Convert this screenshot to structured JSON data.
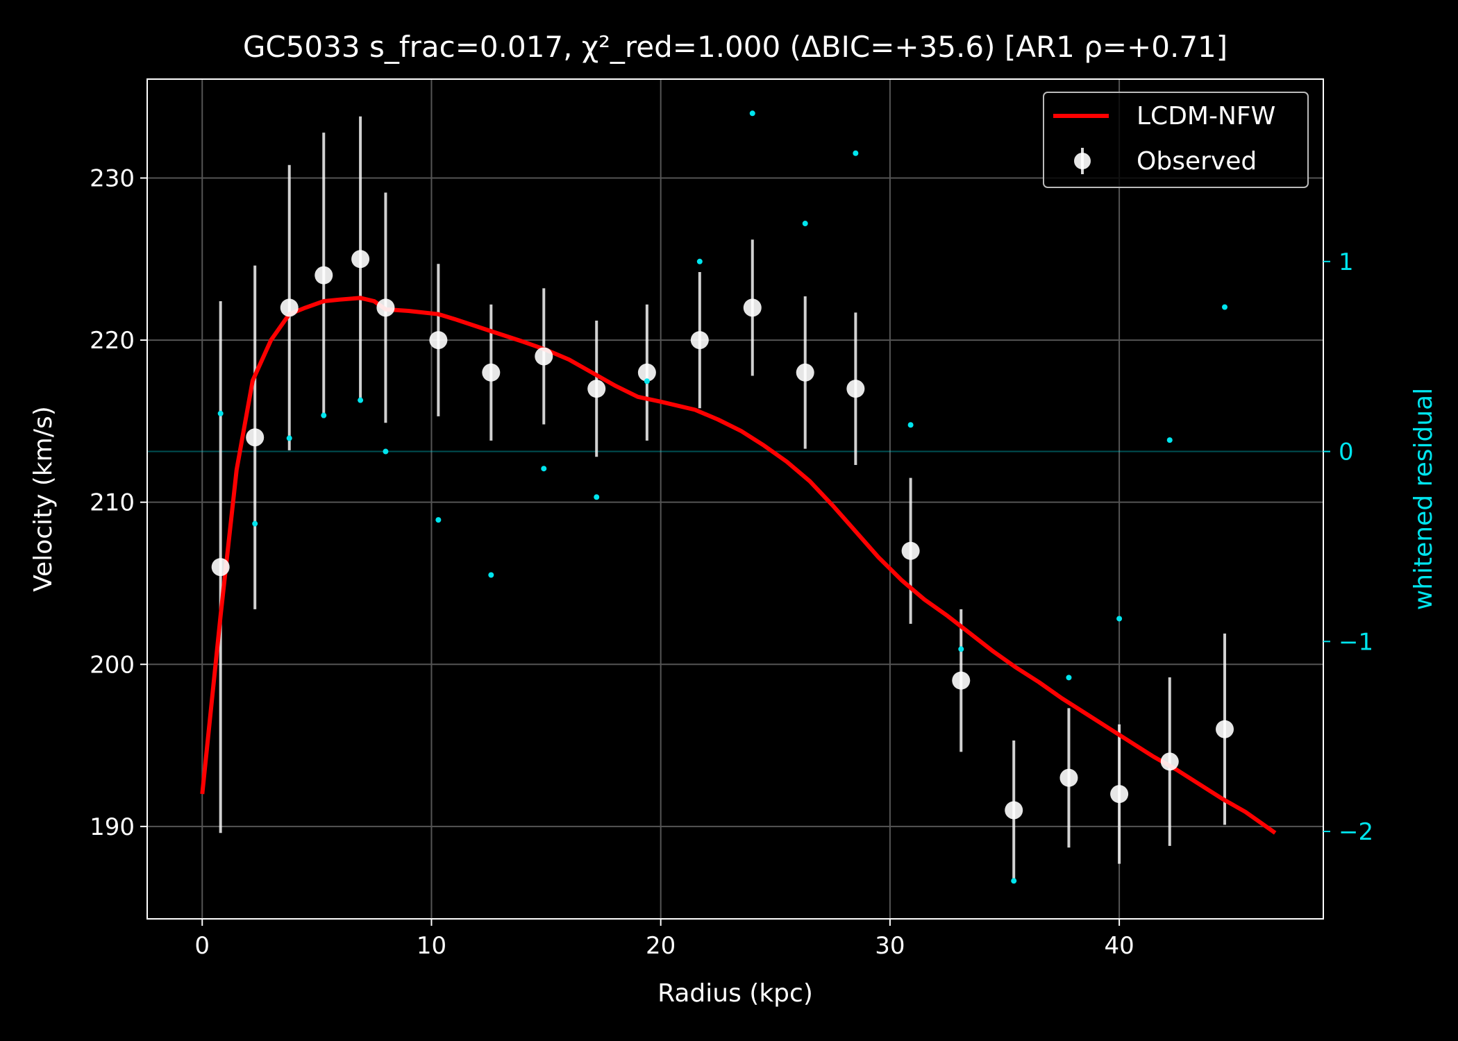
{
  "chart_data": {
    "type": "scatter",
    "title": "GC5033  s_frac=0.017, χ²_red=1.000  (ΔBIC=+35.6) [AR1 ρ=+0.71]",
    "xlabel": "Radius (kpc)",
    "ylabel": "Velocity (km/s)",
    "y2label": "whitened residual",
    "xlim": [
      -2.4,
      48.9
    ],
    "ylim": [
      184.3,
      236.1
    ],
    "y2lim": [
      -2.46,
      1.96
    ],
    "xticks": [
      0,
      10,
      20,
      30,
      40
    ],
    "yticks": [
      190,
      200,
      210,
      220,
      230
    ],
    "y2ticks": [
      -2,
      -1,
      0,
      1
    ],
    "y2ticklabels": [
      "−2",
      "−1",
      "0",
      "1"
    ],
    "grid": true,
    "legend_position": "top-right",
    "colors": {
      "background": "#000000",
      "model": "#ff0000",
      "observed": "#ffffff",
      "residual": "#00e5ee",
      "grid": "#555555"
    },
    "series": [
      {
        "name": "LCDM-NFW",
        "kind": "line",
        "x": [
          0,
          0.8,
          1.5,
          2.2,
          3.0,
          3.8,
          4.5,
          5.3,
          6.0,
          6.9,
          7.5,
          8.0,
          9.0,
          10.3,
          11.0,
          12.5,
          14.0,
          15.0,
          16.0,
          17.0,
          18.0,
          19.0,
          20.0,
          21.5,
          22.5,
          23.5,
          24.5,
          25.5,
          26.5,
          27.5,
          28.5,
          29.5,
          30.5,
          31.5,
          32.5,
          33.5,
          34.5,
          35.5,
          36.5,
          37.5,
          38.5,
          39.5,
          40.5,
          41.5,
          42.5,
          43.5,
          44.5,
          45.5,
          46.8
        ],
        "y": [
          192.0,
          203.0,
          212.0,
          217.5,
          220.0,
          221.6,
          222.0,
          222.4,
          222.5,
          222.6,
          222.4,
          221.9,
          221.8,
          221.6,
          221.3,
          220.6,
          219.9,
          219.4,
          218.8,
          218.0,
          217.2,
          216.5,
          216.2,
          215.7,
          215.1,
          214.4,
          213.5,
          212.5,
          211.3,
          209.8,
          208.2,
          206.6,
          205.2,
          204.0,
          203.0,
          201.9,
          200.8,
          199.8,
          198.9,
          197.9,
          197.0,
          196.1,
          195.2,
          194.3,
          193.5,
          192.6,
          191.7,
          190.9,
          189.6
        ]
      },
      {
        "name": "Observed",
        "kind": "errorbar",
        "x": [
          0.8,
          2.3,
          3.8,
          5.3,
          6.9,
          8.0,
          10.3,
          12.6,
          14.9,
          17.2,
          19.4,
          21.7,
          24.0,
          26.3,
          28.5,
          30.9,
          33.1,
          35.4,
          37.8,
          40.0,
          42.2,
          44.6
        ],
        "y": [
          206,
          214,
          222,
          224,
          225,
          222,
          220,
          218,
          219,
          217,
          218,
          220,
          222,
          218,
          217,
          207,
          199,
          191,
          193,
          192,
          194,
          196
        ],
        "yerr": [
          16.4,
          10.6,
          8.8,
          8.8,
          8.8,
          7.1,
          4.7,
          4.2,
          4.2,
          4.2,
          4.2,
          4.2,
          4.2,
          4.7,
          4.7,
          4.5,
          4.4,
          4.3,
          4.3,
          4.3,
          5.2,
          5.9
        ]
      },
      {
        "kind": "residual",
        "x": [
          0.8,
          2.3,
          3.8,
          5.3,
          6.9,
          8.0,
          10.3,
          12.6,
          14.9,
          17.2,
          19.4,
          21.7,
          24.0,
          26.3,
          28.5,
          30.9,
          33.1,
          35.4,
          37.8,
          40.0,
          42.2,
          44.6
        ],
        "y": [
          0.2,
          -0.38,
          0.07,
          0.19,
          0.27,
          0.0,
          -0.36,
          -0.65,
          -0.09,
          -0.24,
          0.37,
          1.0,
          1.78,
          1.2,
          1.57,
          0.14,
          -1.04,
          -2.26,
          -1.19,
          -0.88,
          0.06,
          0.76
        ]
      }
    ]
  }
}
